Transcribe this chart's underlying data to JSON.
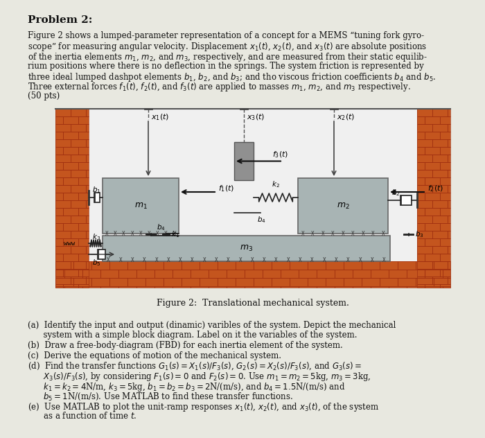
{
  "bg_color": "#e8e8e0",
  "text_color": "#111111",
  "title": "Problem 2:",
  "para_lines": [
    "Figure 2 shows a lumped-parameter representation of a concept for a MEMS “tuning fork gyro-",
    "scope” for measuring angular velocity. Displacement $x_1(t)$, $x_2(t)$, and $x_3(t)$ are absolute positions",
    "of the inertia elements $m_1$, $m_2$, and $m_3$, respectively, and are measured from their static equilib-",
    "rium positions where there is no deflection in the springs. The system friction is represented by",
    "three ideal lumped dashpot elements $b_1$, $b_2$, and $b_3$; and tho viscous friction coefficients $b_4$ and $b_5$.",
    "Three external forces $f_1(t)$, $f_2(t)$, and $f_3(t)$ are applied to masses $m_1$, $m_2$, and $m_3$ respectively.",
    "(50 pts)"
  ],
  "q_lines": [
    "(a)  Identify the input and output (dinamic) varibles of the system. Depict the mechanical",
    "      system with a simple block diagram. Label on it the variables of the system.",
    "(b)  Draw a free-body-diagram (FBD) for each inertia element of the system.",
    "(c)  Derive the equations of motion of the mechanical system.",
    "(d)  Find the transfer functions $G_1(s) = X_1(s)/F_3(s)$, $G_2(s) = X_2(s)/F_3(s)$, and $G_3(s) =$",
    "      $X_3(s)/F_3(s)$, by considering $F_1(s) = 0$ and $F_2(s) = 0$. Use $m_1 = m_2 = 5$kg, $m_3 = 3$kg,",
    "      $k_1 = k_2 = 4$N/m, $k_3 = 5$kg, $b_1 = b_2 = b_3 = 2$N/(m/s), and $b_4 = 1.5$N/(m/s) and",
    "      $b_5 = 1$N/(m/s). Use MATLAB to find these transfer functions.",
    "(e)  Use MATLAB to plot the unit-ramp responses $x_1(t)$, $x_2(t)$, and $x_3(t)$, of the system",
    "      as a function of time $t$."
  ],
  "fig_caption": "Figure 2:  Translational mechanical system.",
  "brick_color": "#c4551e",
  "brick_dark": "#a03010",
  "mortar_color": "#d4956a",
  "floor_color": "#c87830",
  "mass_color": "#a8b4b4",
  "mass_edge": "#666666",
  "spring_color": "#222222",
  "arrow_color": "#111111"
}
